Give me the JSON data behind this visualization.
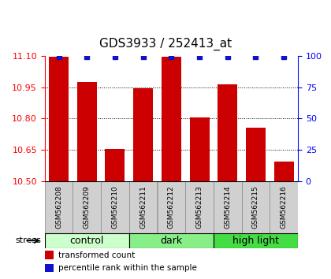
{
  "title": "GDS3933 / 252413_at",
  "samples": [
    "GSM562208",
    "GSM562209",
    "GSM562210",
    "GSM562211",
    "GSM562212",
    "GSM562213",
    "GSM562214",
    "GSM562215",
    "GSM562216"
  ],
  "bar_values": [
    11.095,
    10.975,
    10.655,
    10.945,
    11.095,
    10.805,
    10.965,
    10.755,
    10.595
  ],
  "percentile_values": [
    99,
    99,
    99,
    99,
    99,
    99,
    99,
    99,
    99
  ],
  "bar_color": "#cc0000",
  "dot_color": "#1111cc",
  "ylim_left": [
    10.5,
    11.1
  ],
  "ylim_right": [
    0,
    100
  ],
  "yticks_left": [
    10.5,
    10.65,
    10.8,
    10.95,
    11.1
  ],
  "yticks_right": [
    0,
    25,
    50,
    75,
    100
  ],
  "groups": [
    {
      "label": "control",
      "indices": [
        0,
        1,
        2
      ],
      "color": "#ccffcc"
    },
    {
      "label": "dark",
      "indices": [
        3,
        4,
        5
      ],
      "color": "#88ee88"
    },
    {
      "label": "high light",
      "indices": [
        6,
        7,
        8
      ],
      "color": "#44dd44"
    }
  ],
  "stress_label": "stress",
  "legend_items": [
    {
      "color": "#cc0000",
      "label": "transformed count"
    },
    {
      "color": "#1111cc",
      "label": "percentile rank within the sample"
    }
  ],
  "bar_bottom": 10.5,
  "bar_width": 0.7,
  "title_fontsize": 11,
  "tick_fontsize": 8,
  "label_fontsize": 8,
  "sample_fontsize": 6.5,
  "group_fontsize": 9,
  "legend_fontsize": 7.5
}
